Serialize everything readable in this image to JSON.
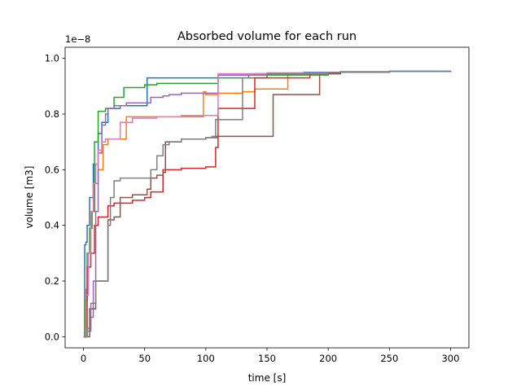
{
  "chart_data": {
    "type": "line",
    "title": "Absorbed volume for each run",
    "xlabel": "time [s]",
    "ylabel": "volume [m3]",
    "y_offset_label": "1e−8",
    "y_scale": 1e-08,
    "xlim": [
      -15,
      315
    ],
    "ylim": [
      -0.04,
      1.04
    ],
    "x_ticks": [
      0,
      50,
      100,
      150,
      200,
      250,
      300
    ],
    "y_ticks": [
      0.0,
      0.2,
      0.4,
      0.6,
      0.8,
      1.0
    ],
    "x_tick_labels": [
      "0",
      "50",
      "100",
      "150",
      "200",
      "250",
      "300"
    ],
    "y_tick_labels": [
      "0.0",
      "0.2",
      "0.4",
      "0.6",
      "0.8",
      "1.0"
    ],
    "grid": false,
    "legend": "none",
    "line_style": "step",
    "series": [
      {
        "color": "#1f77b4",
        "x": [
          0,
          1,
          2,
          3,
          5,
          8,
          12,
          15,
          20,
          30,
          40,
          52,
          60,
          80,
          110,
          140,
          180,
          210,
          250,
          300
        ],
        "y": [
          0.0,
          0.33,
          0.34,
          0.4,
          0.5,
          0.62,
          0.73,
          0.77,
          0.82,
          0.83,
          0.83,
          0.93,
          0.93,
          0.93,
          0.94,
          0.945,
          0.95,
          0.952,
          0.954,
          0.956
        ]
      },
      {
        "color": "#ff7f0e",
        "x": [
          0,
          2,
          4,
          6,
          9,
          12,
          16,
          20,
          35,
          50,
          70,
          98,
          100,
          110,
          130,
          140,
          167,
          210,
          250,
          300
        ],
        "y": [
          0.0,
          0.17,
          0.3,
          0.45,
          0.55,
          0.6,
          0.69,
          0.71,
          0.79,
          0.79,
          0.79,
          0.88,
          0.87,
          0.875,
          0.88,
          0.89,
          0.945,
          0.95,
          0.953,
          0.956
        ]
      },
      {
        "color": "#2ca02c",
        "x": [
          0,
          1,
          3,
          5,
          7,
          9,
          12,
          15,
          18,
          25,
          33,
          50,
          60,
          110,
          150,
          200,
          250,
          300
        ],
        "y": [
          0.0,
          0.13,
          0.3,
          0.39,
          0.45,
          0.7,
          0.81,
          0.81,
          0.82,
          0.86,
          0.895,
          0.905,
          0.91,
          0.93,
          0.94,
          0.95,
          0.953,
          0.956
        ]
      },
      {
        "color": "#d62728",
        "x": [
          0,
          3,
          6,
          9,
          12,
          20,
          25,
          30,
          40,
          50,
          55,
          65,
          80,
          100,
          108,
          110,
          140,
          185,
          210,
          250,
          300
        ],
        "y": [
          0.0,
          0.25,
          0.3,
          0.4,
          0.43,
          0.47,
          0.48,
          0.48,
          0.49,
          0.5,
          0.52,
          0.6,
          0.605,
          0.61,
          0.68,
          0.82,
          0.93,
          0.945,
          0.95,
          0.953,
          0.956
        ]
      },
      {
        "color": "#9467bd",
        "x": [
          0,
          3,
          6,
          8,
          10,
          12,
          15,
          18,
          20,
          25,
          35,
          55,
          65,
          70,
          80,
          110,
          150,
          200,
          250,
          300
        ],
        "y": [
          0.0,
          0.02,
          0.07,
          0.2,
          0.45,
          0.66,
          0.76,
          0.8,
          0.82,
          0.83,
          0.84,
          0.86,
          0.865,
          0.87,
          0.875,
          0.94,
          0.945,
          0.95,
          0.953,
          0.956
        ]
      },
      {
        "color": "#8c564b",
        "x": [
          0,
          5,
          10,
          20,
          25,
          30,
          40,
          52,
          55,
          60,
          65,
          67,
          80,
          100,
          109,
          155,
          193,
          210,
          250,
          300
        ],
        "y": [
          0.0,
          0.1,
          0.2,
          0.42,
          0.43,
          0.5,
          0.51,
          0.53,
          0.57,
          0.58,
          0.59,
          0.7,
          0.71,
          0.715,
          0.72,
          0.87,
          0.945,
          0.95,
          0.953,
          0.956
        ]
      },
      {
        "color": "#e377c2",
        "x": [
          0,
          2,
          4,
          6,
          8,
          10,
          12,
          15,
          18,
          20,
          30,
          40,
          60,
          80,
          100,
          110,
          150,
          200,
          250,
          300
        ],
        "y": [
          0.0,
          0.15,
          0.3,
          0.45,
          0.55,
          0.62,
          0.67,
          0.7,
          0.71,
          0.71,
          0.77,
          0.785,
          0.79,
          0.795,
          0.795,
          0.945,
          0.948,
          0.95,
          0.953,
          0.956
        ]
      },
      {
        "color": "#7f7f7f",
        "x": [
          0,
          3,
          6,
          10,
          20,
          22,
          25,
          30,
          50,
          55,
          60,
          65,
          70,
          80,
          100,
          105,
          108,
          130,
          135,
          150,
          200,
          250,
          300
        ],
        "y": [
          0.0,
          0.03,
          0.12,
          0.2,
          0.4,
          0.5,
          0.56,
          0.57,
          0.57,
          0.6,
          0.65,
          0.69,
          0.7,
          0.71,
          0.715,
          0.72,
          0.78,
          0.93,
          0.94,
          0.945,
          0.95,
          0.953,
          0.956
        ]
      }
    ]
  }
}
